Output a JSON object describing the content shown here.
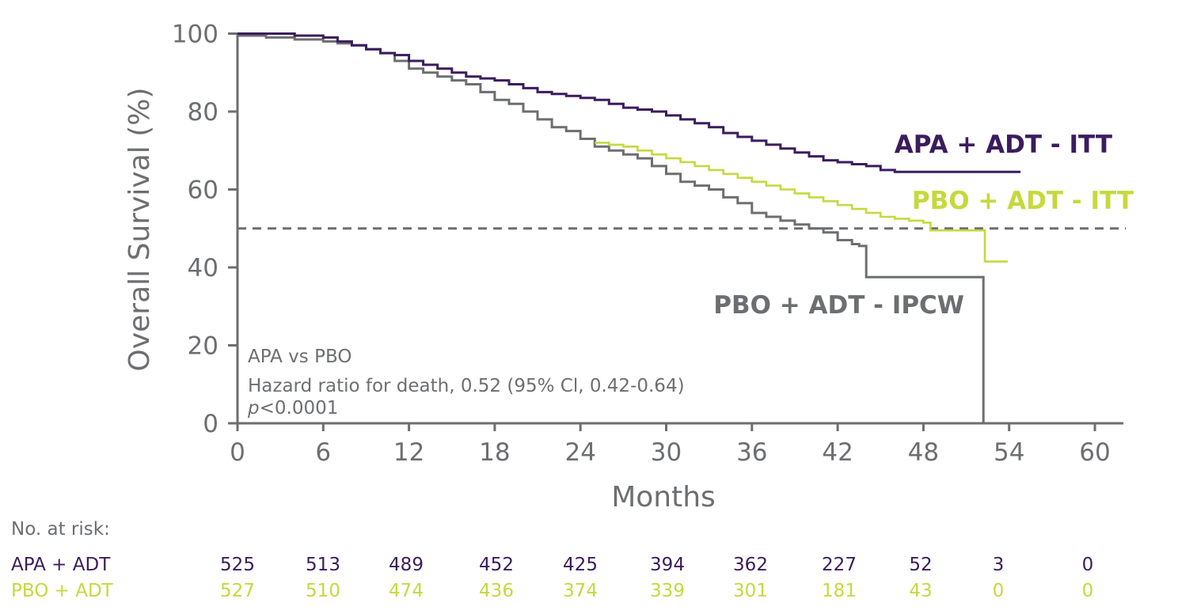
{
  "colors": {
    "apa": "#3b1c5e",
    "pbo_itt": "#c5d93d",
    "pbo_ipcw": "#6d6e71",
    "axis": "#6d6e71",
    "reference": "#6d6e71"
  },
  "chart_data": {
    "type": "line",
    "subtype": "kaplan-meier",
    "xlabel": "Months",
    "ylabel": "Overall Survival (%)",
    "xlim": [
      0,
      62
    ],
    "ylim": [
      0,
      100
    ],
    "xticks": [
      "0",
      "6",
      "12",
      "18",
      "24",
      "30",
      "36",
      "42",
      "48",
      "54",
      "60"
    ],
    "xtick_values": [
      0,
      6,
      12,
      18,
      24,
      30,
      36,
      42,
      48,
      54,
      60
    ],
    "yticks": [
      "0",
      "20",
      "40",
      "60",
      "80",
      "100"
    ],
    "ytick_values": [
      0,
      20,
      40,
      60,
      80,
      100
    ],
    "reference_line": {
      "y": 50,
      "style": "dashed"
    },
    "series": [
      {
        "name": "APA + ADT - ITT",
        "color_key": "apa",
        "points": [
          [
            0,
            100
          ],
          [
            2,
            100
          ],
          [
            4,
            99.5
          ],
          [
            6,
            99
          ],
          [
            7,
            98
          ],
          [
            8,
            97
          ],
          [
            9,
            96
          ],
          [
            10,
            95
          ],
          [
            11,
            94.5
          ],
          [
            12,
            93
          ],
          [
            13,
            92
          ],
          [
            14,
            91
          ],
          [
            15,
            90
          ],
          [
            16,
            89
          ],
          [
            17,
            88.5
          ],
          [
            18,
            88
          ],
          [
            19,
            87
          ],
          [
            20,
            86
          ],
          [
            21,
            85
          ],
          [
            22,
            84.5
          ],
          [
            23,
            84
          ],
          [
            24,
            83.5
          ],
          [
            25,
            83
          ],
          [
            26,
            82
          ],
          [
            27,
            81
          ],
          [
            28,
            80.5
          ],
          [
            29,
            80
          ],
          [
            30,
            79
          ],
          [
            31,
            78
          ],
          [
            32,
            77
          ],
          [
            33,
            76
          ],
          [
            34,
            74.5
          ],
          [
            35,
            73.5
          ],
          [
            36,
            72.5
          ],
          [
            37,
            71.5
          ],
          [
            38,
            70.5
          ],
          [
            39,
            69.5
          ],
          [
            40,
            68.5
          ],
          [
            41,
            67.5
          ],
          [
            42,
            67
          ],
          [
            43,
            66.5
          ],
          [
            44,
            66
          ],
          [
            45,
            65
          ],
          [
            46,
            64.5
          ],
          [
            48,
            64.5
          ],
          [
            50,
            64.5
          ],
          [
            52,
            64.5
          ],
          [
            54,
            64.5
          ],
          [
            54.8,
            64.5
          ]
        ]
      },
      {
        "name": "PBO + ADT - ITT",
        "color_key": "pbo_itt",
        "points": [
          [
            25,
            72
          ],
          [
            26,
            71.5
          ],
          [
            27,
            71
          ],
          [
            28,
            70
          ],
          [
            29,
            69
          ],
          [
            30,
            68
          ],
          [
            31,
            67
          ],
          [
            32,
            66
          ],
          [
            33,
            65
          ],
          [
            34,
            64
          ],
          [
            35,
            63
          ],
          [
            36,
            62
          ],
          [
            37,
            61
          ],
          [
            38,
            60
          ],
          [
            39,
            59
          ],
          [
            40,
            58
          ],
          [
            41,
            57
          ],
          [
            42,
            56
          ],
          [
            43,
            55
          ],
          [
            44,
            54
          ],
          [
            45,
            53
          ],
          [
            46,
            52.5
          ],
          [
            47,
            52
          ],
          [
            48,
            51.5
          ],
          [
            48.5,
            49.5
          ],
          [
            50,
            49.5
          ],
          [
            52,
            49.5
          ],
          [
            52.3,
            41.5
          ],
          [
            53.9,
            41.5
          ]
        ]
      },
      {
        "name": "PBO + ADT - IPCW",
        "color_key": "pbo_ipcw",
        "points": [
          [
            0,
            99.5
          ],
          [
            2,
            99
          ],
          [
            4,
            98.5
          ],
          [
            6,
            98
          ],
          [
            7,
            97.5
          ],
          [
            8,
            97
          ],
          [
            9,
            96
          ],
          [
            10,
            95
          ],
          [
            11,
            93
          ],
          [
            12,
            91
          ],
          [
            13,
            90
          ],
          [
            14,
            89
          ],
          [
            15,
            88
          ],
          [
            16,
            87
          ],
          [
            17,
            85
          ],
          [
            18,
            83
          ],
          [
            19,
            82
          ],
          [
            20,
            80
          ],
          [
            21,
            78
          ],
          [
            22,
            76
          ],
          [
            23,
            75
          ],
          [
            24,
            73
          ],
          [
            25,
            71
          ],
          [
            26,
            70
          ],
          [
            27,
            69
          ],
          [
            28,
            68
          ],
          [
            29,
            66
          ],
          [
            30,
            64
          ],
          [
            31,
            62
          ],
          [
            32,
            61
          ],
          [
            33,
            60
          ],
          [
            34,
            58
          ],
          [
            35,
            56.5
          ],
          [
            36,
            54
          ],
          [
            37,
            53
          ],
          [
            38,
            52
          ],
          [
            39,
            51
          ],
          [
            40,
            50
          ],
          [
            41,
            49
          ],
          [
            42,
            47
          ],
          [
            43,
            46
          ],
          [
            43.5,
            45.5
          ],
          [
            44,
            37.5
          ],
          [
            46,
            37.5
          ],
          [
            48,
            37.5
          ],
          [
            50,
            37.5
          ],
          [
            52.2,
            37.5
          ],
          [
            52.2,
            0
          ]
        ]
      }
    ],
    "series_labels": [
      {
        "text": "APA + ADT - ITT",
        "color_key": "apa"
      },
      {
        "text": "PBO + ADT - ITT",
        "color_key": "pbo_itt"
      },
      {
        "text": "PBO + ADT - IPCW",
        "color_key": "pbo_ipcw"
      }
    ],
    "annotation": {
      "line1": "APA vs PBO",
      "line2": "Hazard ratio for death, 0.52 (95% Cl, 0.42-0.64)",
      "line3_italic": "p",
      "line3_rest": "<0.0001"
    }
  },
  "risk_table": {
    "title": "No. at risk:",
    "rows": [
      {
        "label": "APA + ADT",
        "color_key": "apa",
        "values": [
          "525",
          "513",
          "489",
          "452",
          "425",
          "394",
          "362",
          "227",
          "52",
          "3",
          "0"
        ]
      },
      {
        "label": "PBO + ADT",
        "color_key": "pbo_itt",
        "values": [
          "527",
          "510",
          "474",
          "436",
          "374",
          "339",
          "301",
          "181",
          "43",
          "0",
          "0"
        ]
      }
    ]
  }
}
